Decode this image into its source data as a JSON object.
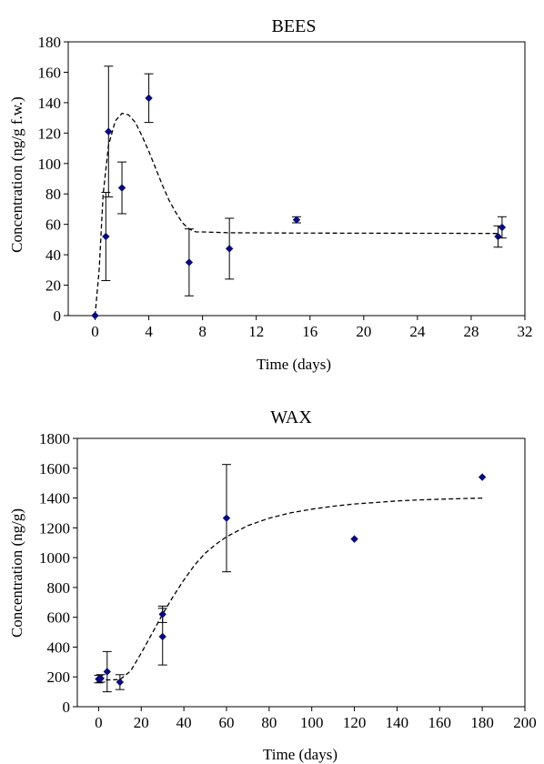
{
  "colors": {
    "marker": "#0a0a78",
    "line": "#000000",
    "frame": "#000000"
  },
  "chart_data": [
    {
      "type": "scatter",
      "title": "BEES",
      "xlabel": "Time (days)",
      "ylabel": "Concentration (ng/g f.w.)",
      "xlim": [
        -2,
        32
      ],
      "ylim": [
        0,
        180
      ],
      "xticks": [
        0,
        4,
        8,
        12,
        16,
        20,
        24,
        28,
        32
      ],
      "yticks": [
        0,
        20,
        40,
        60,
        80,
        100,
        120,
        140,
        160,
        180
      ],
      "grid": false,
      "legend": "none",
      "series": [
        {
          "kind": "points",
          "x": [
            0,
            0.8,
            1,
            2,
            4,
            7,
            10,
            15,
            30,
            30.3
          ],
          "y": [
            0,
            52,
            121,
            84,
            143,
            35,
            44,
            63,
            52,
            58
          ],
          "err_low": [
            0,
            29,
            43,
            17,
            16,
            22,
            20,
            2,
            7,
            7
          ],
          "err_high": [
            0,
            29,
            43,
            17,
            16,
            22,
            20,
            2,
            7,
            7
          ]
        },
        {
          "kind": "fit",
          "style": "dashed",
          "x": [
            0,
            0.3,
            0.6,
            1,
            1.5,
            2,
            2.5,
            3,
            3.5,
            4,
            4.5,
            5,
            5.5,
            6,
            6.5,
            7,
            7.5,
            8,
            10,
            14,
            20,
            26,
            30
          ],
          "y": [
            0,
            30,
            80,
            112,
            128,
            133,
            132,
            127,
            118,
            108,
            97,
            86,
            76,
            68,
            61,
            57,
            55,
            55,
            54.5,
            54.3,
            54.2,
            54.1,
            54
          ]
        }
      ]
    },
    {
      "type": "scatter",
      "title": "WAX",
      "xlabel": "Time (days)",
      "ylabel": "Concentration (ng/g)",
      "xlim": [
        -10,
        200
      ],
      "ylim": [
        0,
        1800
      ],
      "xticks": [
        0,
        20,
        40,
        60,
        80,
        100,
        120,
        140,
        160,
        180,
        200
      ],
      "yticks": [
        0,
        200,
        400,
        600,
        800,
        1000,
        1200,
        1400,
        1600,
        1800
      ],
      "grid": false,
      "legend": "none",
      "series": [
        {
          "kind": "points",
          "x": [
            0,
            1,
            4,
            10,
            30,
            30,
            60,
            120,
            180
          ],
          "y": [
            185,
            190,
            235,
            165,
            470,
            620,
            1265,
            1125,
            1540
          ],
          "err_low": [
            25,
            25,
            135,
            50,
            190,
            55,
            360,
            0,
            0
          ],
          "err_high": [
            25,
            25,
            135,
            50,
            190,
            55,
            360,
            0,
            0
          ]
        },
        {
          "kind": "fit",
          "style": "dashed",
          "x": [
            0,
            5,
            10,
            15,
            20,
            25,
            30,
            35,
            40,
            45,
            50,
            55,
            60,
            70,
            80,
            90,
            100,
            110,
            120,
            130,
            140,
            150,
            160,
            170,
            180
          ],
          "y": [
            180,
            180,
            182,
            240,
            360,
            490,
            620,
            740,
            850,
            950,
            1030,
            1090,
            1140,
            1215,
            1265,
            1300,
            1325,
            1345,
            1360,
            1370,
            1380,
            1387,
            1392,
            1396,
            1400
          ]
        }
      ]
    }
  ]
}
